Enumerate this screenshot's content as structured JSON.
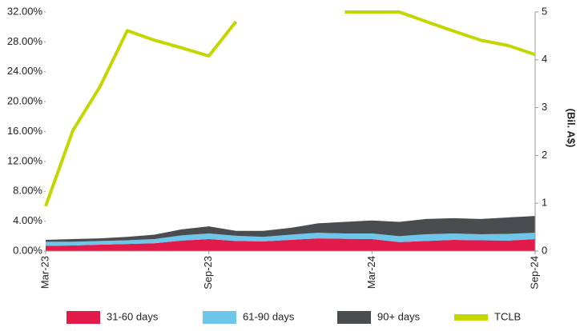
{
  "chart_data": {
    "type": "stacked-area-line",
    "categories": [
      "Mar-23",
      null,
      null,
      null,
      null,
      null,
      "Sep-23",
      null,
      null,
      null,
      null,
      null,
      "Mar-24",
      null,
      null,
      null,
      null,
      null,
      "Sep-24"
    ],
    "series": [
      {
        "name": "31-60 days",
        "color": "#e31b4b",
        "type": "area",
        "values": [
          0.7,
          0.75,
          0.85,
          0.95,
          1.05,
          1.4,
          1.6,
          1.35,
          1.3,
          1.5,
          1.7,
          1.65,
          1.6,
          1.2,
          1.35,
          1.5,
          1.45,
          1.4,
          1.6
        ]
      },
      {
        "name": "61-90 days",
        "color": "#6ec6ea",
        "type": "area",
        "values": [
          0.55,
          0.5,
          0.5,
          0.5,
          0.55,
          0.7,
          0.75,
          0.7,
          0.6,
          0.7,
          0.75,
          0.7,
          0.75,
          0.8,
          0.9,
          0.85,
          0.8,
          0.9,
          0.85
        ]
      },
      {
        "name": "90+ days",
        "color": "#4a4d50",
        "type": "area",
        "values": [
          0.25,
          0.35,
          0.35,
          0.45,
          0.6,
          0.8,
          0.95,
          0.65,
          0.8,
          0.9,
          1.25,
          1.55,
          1.75,
          1.9,
          2.05,
          2.05,
          2.05,
          2.2,
          2.25
        ]
      },
      {
        "name": "TCLB",
        "color": "#c4d600",
        "type": "line",
        "axis": "y2",
        "values": [
          0.94,
          2.52,
          3.44,
          4.61,
          4.41,
          4.25,
          4.08,
          4.8,
          null,
          null,
          null,
          5,
          5,
          5,
          4.8,
          4.6,
          4.41,
          4.3,
          4.11
        ]
      }
    ],
    "ylim": [
      0,
      32
    ],
    "yticks": [
      {
        "value": 0,
        "label": "0.00%"
      },
      {
        "value": 4,
        "label": "4.00%"
      },
      {
        "value": 8,
        "label": "8.00%"
      },
      {
        "value": 12,
        "label": "12.00%"
      },
      {
        "value": 16,
        "label": "16.00%"
      },
      {
        "value": 20,
        "label": "20.00%"
      },
      {
        "value": 24,
        "label": "24.00%"
      },
      {
        "value": 28,
        "label": "28.00%"
      },
      {
        "value": 32,
        "label": "32.00%"
      }
    ],
    "y2lim": [
      0,
      5
    ],
    "y2ticks": [
      0,
      1,
      2,
      3,
      4,
      5
    ],
    "y2_label": "(Bil. A$)",
    "legend": "bottom"
  }
}
